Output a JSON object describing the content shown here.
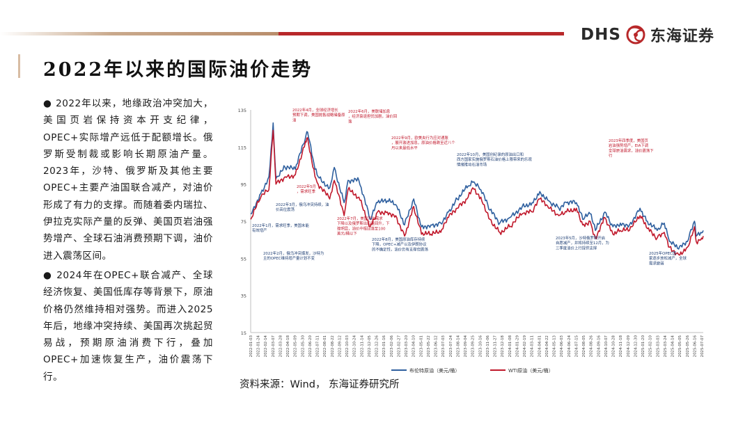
{
  "header": {
    "logo_latin": "DHS",
    "logo_cn": "东海证券",
    "logo_icon": "company-dragon-seal-icon",
    "title": "2022年以来的国际油价走势"
  },
  "bullets": [
    "● 2022年以来，地缘政治冲突加大，美国页岩保持资本开支纪律，OPEC+实际增产远低于配额增长。俄罗斯受制裁或影响长期原油产量。2023年，沙特、俄罗斯及其他主要OPEC+主要产油国联合减产，对油价形成了有力的支撑。而随着委内瑞拉、伊拉克实际产量的反弹、美国页岩油强势增产、全球石油消费预期下调，油价进入震荡区间。",
    "● 2024年在OPEC+联合减产、全球经济恢复、美国低库存等背景下，原油价格仍然维持相对强势。而进入2025年后，地缘冲突持续、美国再次挑起贸易战，预期原油消费下行，叠加OPEC+加速恢复生产，油价震荡下行。"
  ],
  "source": "资料来源：Wind， 东海证券研究所",
  "colors": {
    "brent": "#2e5f9e",
    "wti": "#c0182b",
    "red_annotation": "#c0182b",
    "blue_annotation": "#1f3f74",
    "accent_red": "#b8282a",
    "accent_gold": "#c9a98c"
  },
  "chart_data": {
    "type": "line",
    "ylim": [
      15,
      135
    ],
    "y_ticks": [
      "15",
      "35",
      "55",
      "75",
      "95",
      "115",
      "135"
    ],
    "x_tick_labels": [
      "2022-01-03",
      "2022-01-24",
      "2022-02-14",
      "2022-03-07",
      "2022-03-28",
      "2022-04-18",
      "2022-05-09",
      "2022-05-30",
      "2022-06-20",
      "2022-07-11",
      "2022-08-01",
      "2022-08-22",
      "2022-09-12",
      "2022-10-03",
      "2022-10-24",
      "2022-11-14",
      "2022-12-05",
      "2022-12-26",
      "2023-01-16",
      "2023-02-06",
      "2023-02-27",
      "2023-03-20",
      "2023-04-10",
      "2023-05-01",
      "2023-05-22",
      "2023-06-12",
      "2023-07-03",
      "2023-07-24",
      "2023-08-14",
      "2023-09-04",
      "2023-09-25",
      "2023-10-16",
      "2023-11-06",
      "2023-11-27",
      "2023-12-18",
      "2024-01-08",
      "2024-01-29",
      "2024-02-19",
      "2024-03-11",
      "2024-04-01",
      "2024-04-22",
      "2024-05-13",
      "2024-06-03",
      "2024-06-24",
      "2024-07-15",
      "2024-08-05",
      "2024-08-26",
      "2024-09-16",
      "2024-10-07",
      "2024-10-28",
      "2024-11-18",
      "2024-12-09",
      "2024-12-30",
      "2025-01-20",
      "2025-02-10",
      "2025-03-03",
      "2025-03-24",
      "2025-04-14",
      "2025-05-05",
      "2025-05-26",
      "2025-06-16",
      "2025-07-07"
    ],
    "x_dates": [
      "2022-01-03",
      "2022-02-01",
      "2022-02-24",
      "2022-03-08",
      "2022-03-16",
      "2022-04-11",
      "2022-05-10",
      "2022-06-08",
      "2022-06-14",
      "2022-07-05",
      "2022-07-14",
      "2022-08-16",
      "2022-08-29",
      "2022-09-26",
      "2022-10-07",
      "2022-11-07",
      "2022-12-09",
      "2022-12-30",
      "2023-01-27",
      "2023-02-20",
      "2023-03-17",
      "2023-04-12",
      "2023-05-04",
      "2023-05-31",
      "2023-06-28",
      "2023-07-20",
      "2023-08-14",
      "2023-09-14",
      "2023-09-27",
      "2023-10-20",
      "2023-11-15",
      "2023-12-13",
      "2024-01-10",
      "2024-02-15",
      "2024-03-14",
      "2024-04-05",
      "2024-04-30",
      "2024-05-29",
      "2024-06-20",
      "2024-07-18",
      "2024-08-05",
      "2024-08-26",
      "2024-09-10",
      "2024-10-07",
      "2024-10-30",
      "2024-11-20",
      "2024-12-16",
      "2025-01-15",
      "2025-02-05",
      "2025-03-05",
      "2025-03-25",
      "2025-04-09",
      "2025-05-05",
      "2025-05-30",
      "2025-06-19",
      "2025-06-24",
      "2025-07-07",
      "2025-07-14"
    ],
    "series": [
      {
        "name": "布伦特原油（美元/桶）",
        "values": [
          79,
          90,
          99,
          128,
          98,
          104,
          103,
          120,
          123,
          103,
          99,
          93,
          104,
          85,
          97,
          97,
          76,
          85,
          86,
          84,
          73,
          87,
          72,
          73,
          74,
          80,
          87,
          94,
          96,
          92,
          81,
          74,
          77,
          83,
          85,
          91,
          86,
          82,
          85,
          85,
          76,
          79,
          70,
          80,
          72,
          74,
          73,
          82,
          75,
          70,
          74,
          64,
          60,
          64,
          75,
          67,
          69,
          70
        ]
      },
      {
        "name": "WTI原油（美元/桶）",
        "values": [
          76,
          88,
          92,
          124,
          95,
          99,
          100,
          118,
          120,
          99,
          95,
          87,
          97,
          78,
          92,
          88,
          72,
          80,
          80,
          78,
          67,
          83,
          68,
          68,
          69,
          77,
          82,
          88,
          93,
          88,
          76,
          69,
          72,
          79,
          80,
          87,
          82,
          78,
          80,
          82,
          73,
          75,
          66,
          77,
          68,
          70,
          70,
          78,
          71,
          66,
          69,
          61,
          57,
          61,
          72,
          64,
          65,
          67
        ]
      }
    ],
    "annotations": [
      {
        "text": "2022年1月，需求旺季，美国未能有效增产",
        "color": "blue"
      },
      {
        "text": "2022年2月，俄乌冲突爆发，沙特为主的OPEC维持增产量计划不变",
        "color": "blue"
      },
      {
        "text": "2022年3月，俄乌冲突持续，油价高位震荡",
        "color": "blue"
      },
      {
        "text": "2022年4月，全球经济增长预期下调，美国抛售战略储备原油",
        "color": "red"
      },
      {
        "text": "2022年5月，需求旺季",
        "color": "red"
      },
      {
        "text": "2022年6月，美联储加息，经济衰退担忧加剧，油价回落",
        "color": "red"
      },
      {
        "text": "2022年7月，美国汽油需求下降以及俄罗斯出口量回升，下挫明显，油价中枢回落至100美元/桶以下",
        "color": "red"
      },
      {
        "text": "2022年8月，美国原油库存持续下降，OPEC+减产以及伊朗协议的不确定性，油价仍有支撑但震荡",
        "color": "blue"
      },
      {
        "text": "2022年9月，欧美央行为应对通胀，展开激进加息，原油价格跌至近八个月以来最低水平",
        "color": "red"
      },
      {
        "text": "2022年10月，美国创纪录的原油出口和西方国家实施俄罗斯石油价格上限带来的乐观情绪推动石油市场",
        "color": "blue"
      },
      {
        "text": "2023年5月，沙特俄罗斯开启自愿减产，并将持续至12月，为三季度油价上行提供支撑",
        "color": "blue"
      },
      {
        "text": "2023年四季度，美国页岩油强势增产，EIA下调全球原油需求，油价震荡下行",
        "color": "red"
      },
      {
        "text": "2025年OPEC国家逐步放松减产，全球需求疲弱",
        "color": "blue"
      }
    ]
  }
}
